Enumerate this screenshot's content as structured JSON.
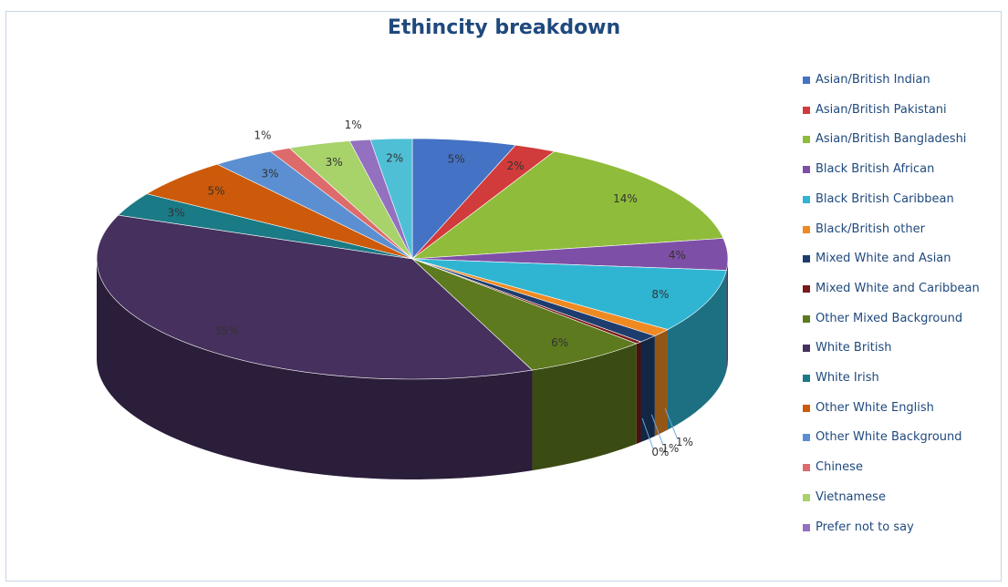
{
  "chart_data": {
    "type": "pie",
    "title": "Ethincity breakdown",
    "legend_position": "right",
    "three_d": true,
    "slices": [
      {
        "name": "Asian/British Indian",
        "value": 5,
        "label": "5%",
        "color": "#4472c4"
      },
      {
        "name": "Asian/British Pakistani",
        "value": 2,
        "label": "2%",
        "color": "#d13b3b"
      },
      {
        "name": "Asian/British Bangladeshi",
        "value": 14,
        "label": "14%",
        "color": "#8fbc3a"
      },
      {
        "name": "Black British African",
        "value": 4,
        "label": "4%",
        "color": "#7e4fa6"
      },
      {
        "name": "Black British Caribbean",
        "value": 8,
        "label": "8%",
        "color": "#2fb5d2"
      },
      {
        "name": "Black/British other",
        "value": 1,
        "label": "1%",
        "color": "#ef8a22"
      },
      {
        "name": "Mixed White and Asian",
        "value": 1,
        "label": "1%",
        "color": "#1e3d6e"
      },
      {
        "name": "Mixed White and Caribbean",
        "value": 0.3,
        "label": "0%",
        "color": "#7a1a1a"
      },
      {
        "name": "Other Mixed Background",
        "value": 6,
        "label": "6%",
        "color": "#5d7a1f"
      },
      {
        "name": "White British",
        "value": 35,
        "label": "35%",
        "color": "#46305e"
      },
      {
        "name": "White Irish",
        "value": 3,
        "label": "3%",
        "color": "#1a7a86"
      },
      {
        "name": "Other White English",
        "value": 5,
        "label": "5%",
        "color": "#cc5a0a"
      },
      {
        "name": "Other White Background",
        "value": 3,
        "label": "3%",
        "color": "#5b8fd1"
      },
      {
        "name": "Chinese",
        "value": 1,
        "label": "1%",
        "color": "#dd6b6b"
      },
      {
        "name": "Vietnamese",
        "value": 3,
        "label": "3%",
        "color": "#a8d26a"
      },
      {
        "name": "Prefer not to say",
        "value": 1,
        "label": "1%",
        "color": "#9470c0"
      },
      {
        "name": "",
        "value": 2,
        "label": "2%",
        "color": "#4fbfd6"
      }
    ]
  }
}
